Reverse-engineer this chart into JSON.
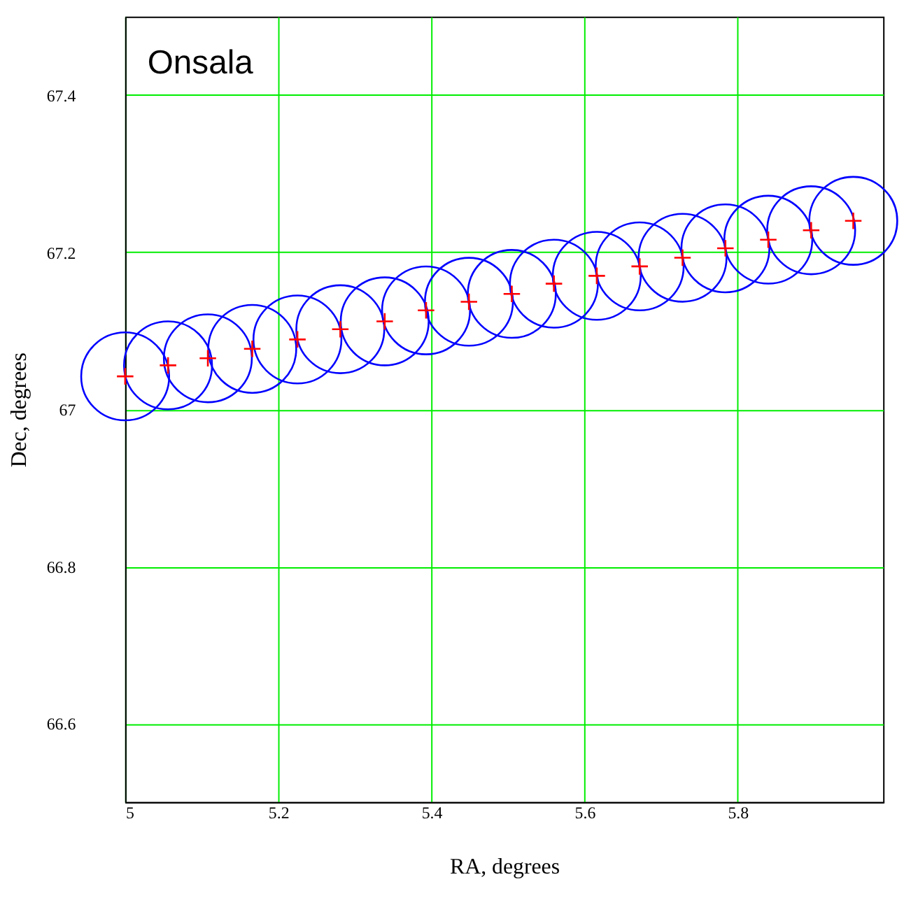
{
  "chart_data": {
    "type": "scatter",
    "x": [
      5.0,
      5.056,
      5.108,
      5.166,
      5.225,
      5.281,
      5.339,
      5.393,
      5.449,
      5.505,
      5.56,
      5.616,
      5.672,
      5.728,
      5.784,
      5.84,
      5.896,
      5.951
    ],
    "series": [
      {
        "color": "#0000ff",
        "marker": "circle",
        "values": [
          67.042,
          67.056,
          67.065,
          67.077,
          67.089,
          67.102,
          67.112,
          67.126,
          67.137,
          67.147,
          67.16,
          67.17,
          67.182,
          67.193,
          67.205,
          67.216,
          67.228,
          67.24
        ]
      },
      {
        "color": "#ff0000",
        "marker": "cross",
        "values": [
          67.042,
          67.056,
          67.065,
          67.077,
          67.089,
          67.102,
          67.112,
          67.126,
          67.137,
          67.147,
          67.16,
          67.17,
          67.182,
          67.193,
          67.205,
          67.216,
          67.228,
          67.24
        ]
      }
    ],
    "xlabel": "RA, degrees",
    "ylabel": "Dec, degrees",
    "xlim": [
      5,
      5.99
    ],
    "xticks": [
      5,
      5.2,
      5.4,
      5.6,
      5.8
    ],
    "ylim": [
      66.5,
      67.5
    ],
    "yticks": [
      66.6,
      66.8,
      67,
      67.2,
      67.4
    ],
    "grid": true,
    "annotations": [
      "Onsala"
    ]
  }
}
